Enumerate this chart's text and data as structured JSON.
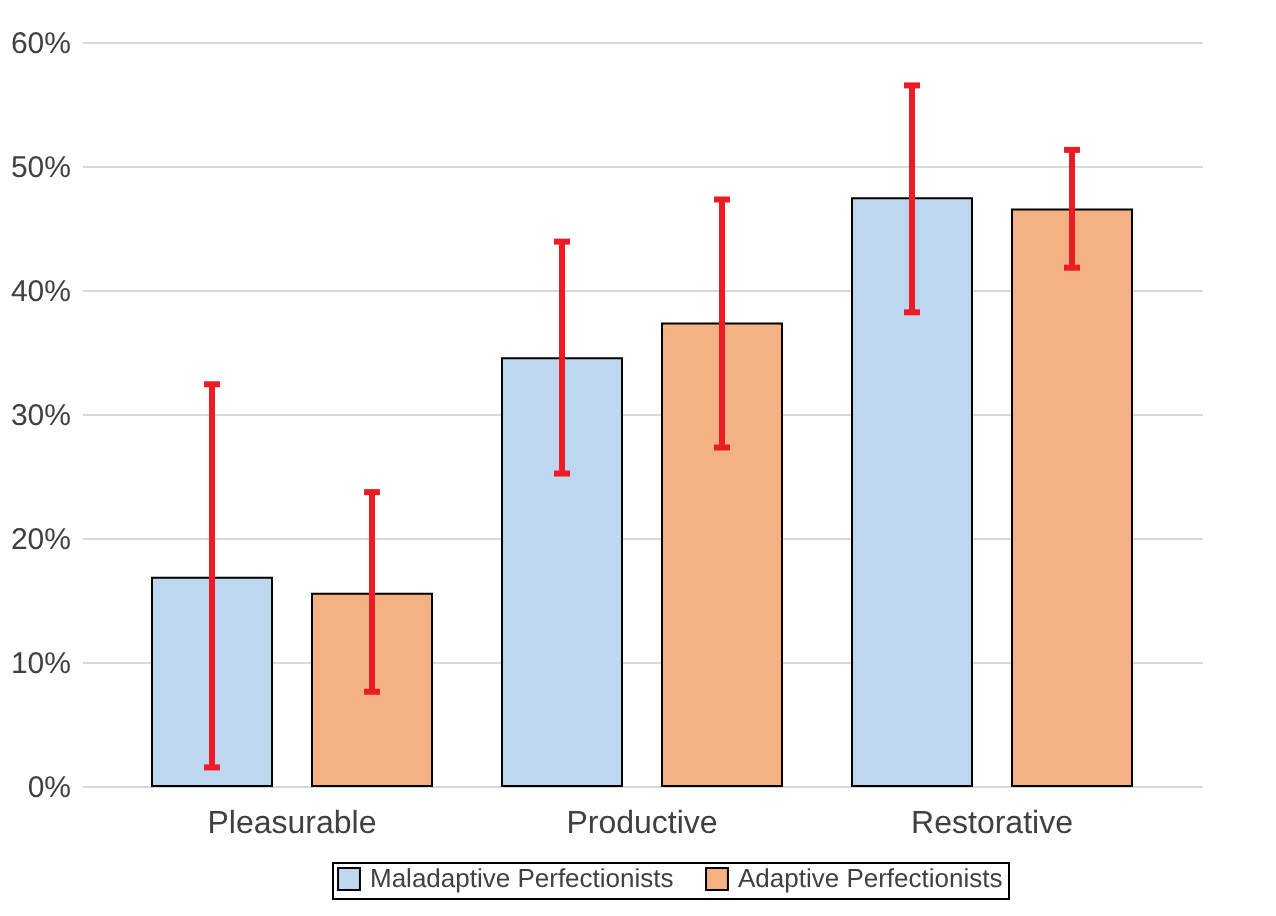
{
  "chart_data": {
    "type": "bar",
    "categories": [
      "Pleasurable",
      "Productive",
      "Restorative"
    ],
    "series": [
      {
        "name": "Maladaptive Perfectionists",
        "color": "#bdd7ee",
        "values": [
          16.8,
          34.5,
          47.4
        ],
        "errors": [
          [
            1.5,
            32.4
          ],
          [
            25.2,
            43.9
          ],
          [
            38.2,
            56.5
          ]
        ]
      },
      {
        "name": "Adaptive Perfectionists",
        "color": "#f4b183",
        "values": [
          15.5,
          37.3,
          46.5
        ],
        "errors": [
          [
            7.6,
            23.7
          ],
          [
            27.3,
            47.3
          ],
          [
            41.8,
            51.3
          ]
        ]
      }
    ],
    "ylim": [
      0,
      60
    ],
    "yticks": [
      {
        "value": 0,
        "label": "0%"
      },
      {
        "value": 10,
        "label": "10%"
      },
      {
        "value": 20,
        "label": "20%"
      },
      {
        "value": 30,
        "label": "30%"
      },
      {
        "value": 40,
        "label": "40%"
      },
      {
        "value": 50,
        "label": "50%"
      },
      {
        "value": 60,
        "label": "60%"
      }
    ],
    "grid": "y",
    "legend": "bottom"
  }
}
